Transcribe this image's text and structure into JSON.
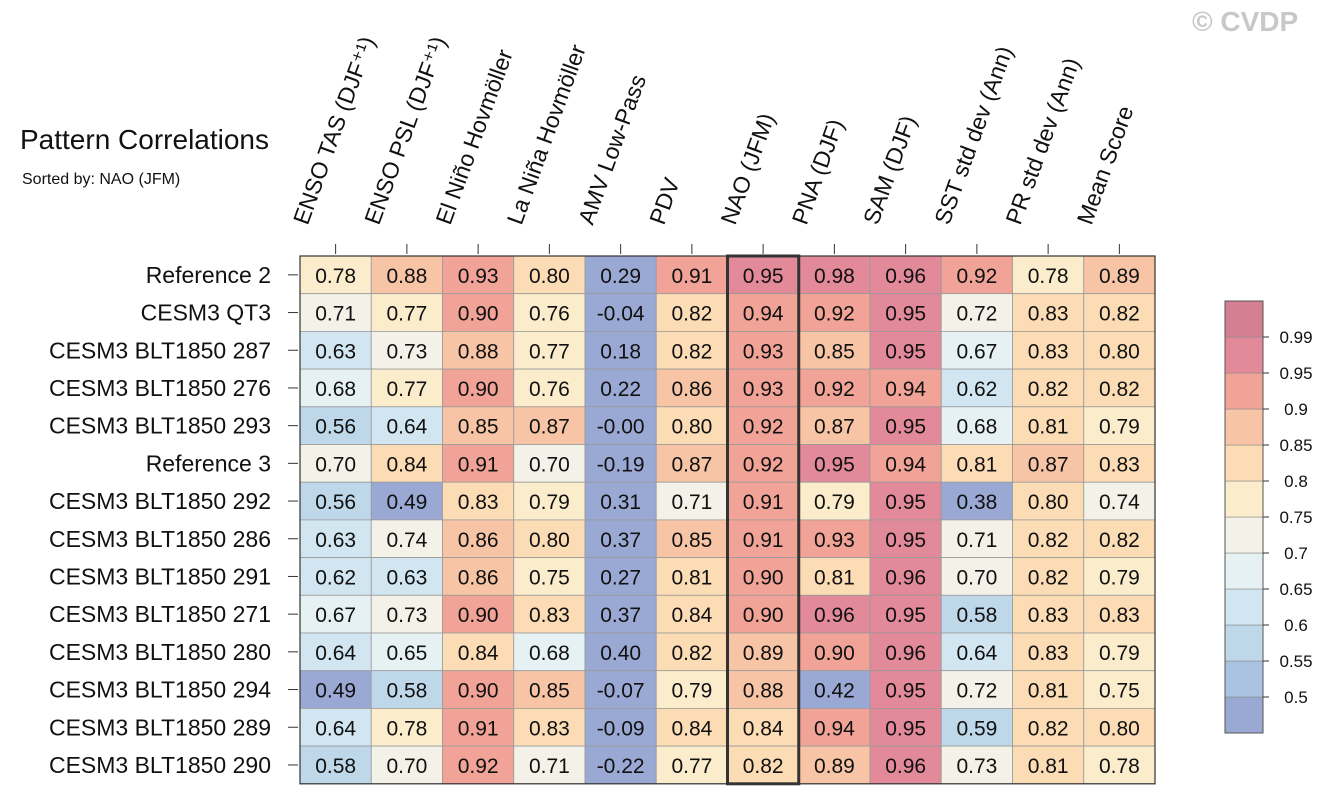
{
  "title": "Pattern Correlations",
  "subtitle": "Sorted by: NAO (JFM)",
  "watermark": "© CVDP",
  "colors": {
    "frame": "#333333",
    "highlight_box": "#333333"
  },
  "chart_data": {
    "type": "heatmap",
    "columns": [
      "ENSO TAS (DJF⁺¹)",
      "ENSO PSL (DJF⁺¹)",
      "El Niño Hovmöller",
      "La Niña Hovmöller",
      "AMV Low-Pass",
      "PDV",
      "NAO (JFM)",
      "PNA (DJF)",
      "SAM (DJF)",
      "SST std dev (Ann)",
      "PR std dev (Ann)",
      "Mean Score"
    ],
    "highlighted_column": "NAO (JFM)",
    "rows": [
      "Reference 2",
      "CESM3 QT3",
      "CESM3 BLT1850 287",
      "CESM3 BLT1850 276",
      "CESM3 BLT1850 293",
      "Reference 3",
      "CESM3 BLT1850 292",
      "CESM3 BLT1850 286",
      "CESM3 BLT1850 291",
      "CESM3 BLT1850 271",
      "CESM3 BLT1850 280",
      "CESM3 BLT1850 294",
      "CESM3 BLT1850 289",
      "CESM3 BLT1850 290"
    ],
    "values": [
      [
        "0.78",
        "0.88",
        "0.93",
        "0.80",
        "0.29",
        "0.91",
        "0.95",
        "0.98",
        "0.96",
        "0.92",
        "0.78",
        "0.89"
      ],
      [
        "0.71",
        "0.77",
        "0.90",
        "0.76",
        "-0.04",
        "0.82",
        "0.94",
        "0.92",
        "0.95",
        "0.72",
        "0.83",
        "0.82"
      ],
      [
        "0.63",
        "0.73",
        "0.88",
        "0.77",
        "0.18",
        "0.82",
        "0.93",
        "0.85",
        "0.95",
        "0.67",
        "0.83",
        "0.80"
      ],
      [
        "0.68",
        "0.77",
        "0.90",
        "0.76",
        "0.22",
        "0.86",
        "0.93",
        "0.92",
        "0.94",
        "0.62",
        "0.82",
        "0.82"
      ],
      [
        "0.56",
        "0.64",
        "0.85",
        "0.87",
        "-0.00",
        "0.80",
        "0.92",
        "0.87",
        "0.95",
        "0.68",
        "0.81",
        "0.79"
      ],
      [
        "0.70",
        "0.84",
        "0.91",
        "0.70",
        "-0.19",
        "0.87",
        "0.92",
        "0.95",
        "0.94",
        "0.81",
        "0.87",
        "0.83"
      ],
      [
        "0.56",
        "0.49",
        "0.83",
        "0.79",
        "0.31",
        "0.71",
        "0.91",
        "0.79",
        "0.95",
        "0.38",
        "0.80",
        "0.74"
      ],
      [
        "0.63",
        "0.74",
        "0.86",
        "0.80",
        "0.37",
        "0.85",
        "0.91",
        "0.93",
        "0.95",
        "0.71",
        "0.82",
        "0.82"
      ],
      [
        "0.62",
        "0.63",
        "0.86",
        "0.75",
        "0.27",
        "0.81",
        "0.90",
        "0.81",
        "0.96",
        "0.70",
        "0.82",
        "0.79"
      ],
      [
        "0.67",
        "0.73",
        "0.90",
        "0.83",
        "0.37",
        "0.84",
        "0.90",
        "0.96",
        "0.95",
        "0.58",
        "0.83",
        "0.83"
      ],
      [
        "0.64",
        "0.65",
        "0.84",
        "0.68",
        "0.40",
        "0.82",
        "0.89",
        "0.90",
        "0.96",
        "0.64",
        "0.83",
        "0.79"
      ],
      [
        "0.49",
        "0.58",
        "0.90",
        "0.85",
        "-0.07",
        "0.79",
        "0.88",
        "0.42",
        "0.95",
        "0.72",
        "0.81",
        "0.75"
      ],
      [
        "0.64",
        "0.78",
        "0.91",
        "0.83",
        "-0.09",
        "0.84",
        "0.84",
        "0.94",
        "0.95",
        "0.59",
        "0.82",
        "0.80"
      ],
      [
        "0.58",
        "0.70",
        "0.92",
        "0.71",
        "-0.22",
        "0.77",
        "0.82",
        "0.89",
        "0.96",
        "0.73",
        "0.81",
        "0.78"
      ]
    ],
    "colorbar": {
      "boundaries": [
        0.5,
        0.55,
        0.6,
        0.65,
        0.7,
        0.75,
        0.8,
        0.85,
        0.9,
        0.95,
        0.99
      ],
      "tick_labels": [
        "0.99",
        "0.95",
        "0.9",
        "0.85",
        "0.8",
        "0.75",
        "0.7",
        "0.65",
        "0.6",
        "0.55",
        "0.5"
      ],
      "colors": [
        "#9aa8d4",
        "#a9c3e0",
        "#bed8ea",
        "#d1e6f0",
        "#e6f1f4",
        "#f4f2e8",
        "#fbedcc",
        "#fbdcb5",
        "#f7c5a6",
        "#f0a396",
        "#e2899a",
        "#d47f92"
      ]
    }
  }
}
